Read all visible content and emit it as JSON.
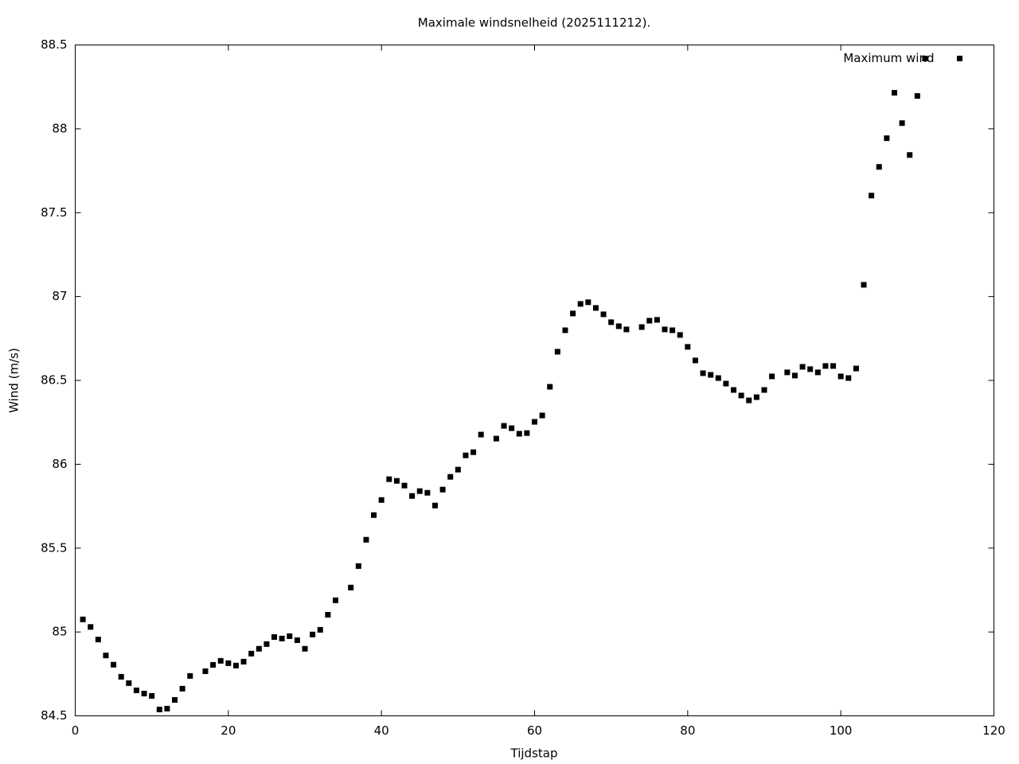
{
  "chart_data": {
    "type": "scatter",
    "title": "Maximale windsnelheid (2025111212).",
    "x_label": "Tijdstap",
    "y_label": "Wind (m/s)",
    "xlim": [
      0,
      120
    ],
    "xticks": [
      0,
      20,
      40,
      60,
      80,
      100,
      120
    ],
    "ylim": [
      84.5,
      88.5
    ],
    "yticks": [
      84.5,
      85,
      85.5,
      86,
      86.5,
      87,
      87.5,
      88,
      88.5
    ],
    "grid": false,
    "legend": "top-right",
    "series": [
      {
        "name": "Maximum wind",
        "color": "#000000",
        "x": [
          1,
          2,
          3,
          4,
          5,
          6,
          7,
          8,
          9,
          10,
          11,
          12,
          13,
          14,
          15,
          17,
          18,
          19,
          20,
          21,
          22,
          23,
          24,
          25,
          26,
          27,
          28,
          29,
          30,
          31,
          32,
          33,
          34,
          36,
          37,
          38,
          39,
          40,
          41,
          42,
          43,
          44,
          45,
          46,
          47,
          48,
          49,
          50,
          51,
          52,
          53,
          55,
          56,
          57,
          58,
          59,
          60,
          61,
          62,
          63,
          64,
          65,
          66,
          67,
          68,
          69,
          70,
          71,
          72,
          74,
          75,
          76,
          77,
          78,
          79,
          80,
          81,
          82,
          83,
          84,
          85,
          86,
          87,
          88,
          89,
          90,
          91,
          93,
          94,
          95,
          96,
          97,
          98,
          99,
          100,
          101,
          102,
          103,
          104,
          105,
          106,
          107,
          108,
          109,
          110,
          111
        ],
        "values": [
          85.075,
          85.03,
          84.955,
          84.86,
          84.805,
          84.733,
          84.695,
          84.652,
          84.633,
          84.619,
          84.538,
          84.543,
          84.595,
          84.662,
          84.738,
          84.766,
          84.804,
          84.828,
          84.814,
          84.8,
          84.823,
          84.871,
          84.9,
          84.928,
          84.97,
          84.961,
          84.975,
          84.951,
          84.9,
          84.985,
          85.013,
          85.103,
          85.189,
          85.265,
          85.393,
          85.55,
          85.697,
          85.787,
          85.911,
          85.901,
          85.873,
          85.811,
          85.84,
          85.83,
          85.754,
          85.849,
          85.925,
          85.968,
          86.053,
          86.072,
          86.177,
          86.153,
          86.229,
          86.215,
          86.182,
          86.186,
          86.253,
          86.291,
          86.462,
          86.671,
          86.799,
          86.899,
          86.956,
          86.966,
          86.932,
          86.894,
          86.847,
          86.823,
          86.804,
          86.818,
          86.856,
          86.861,
          86.804,
          86.799,
          86.771,
          86.7,
          86.619,
          86.543,
          86.533,
          86.514,
          86.481,
          86.443,
          86.41,
          86.381,
          86.4,
          86.443,
          86.524,
          86.548,
          86.529,
          86.581,
          86.567,
          86.548,
          86.586,
          86.586,
          86.524,
          86.514,
          86.571,
          87.07,
          87.602,
          87.773,
          87.944,
          88.215,
          88.034,
          87.844,
          88.196,
          88.419
        ]
      }
    ]
  }
}
